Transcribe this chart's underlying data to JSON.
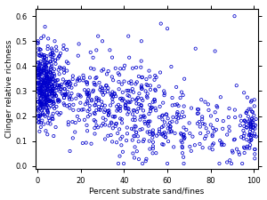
{
  "title": "",
  "xlabel": "Percent substrate sand/fines",
  "ylabel": "Clinger relative richness",
  "xlim": [
    -1,
    102
  ],
  "ylim": [
    -0.01,
    0.63
  ],
  "xticks": [
    0,
    20,
    40,
    60,
    80,
    100
  ],
  "yticks": [
    0.0,
    0.1,
    0.2,
    0.3,
    0.4,
    0.5,
    0.6
  ],
  "marker_color": "#0000CC",
  "background_color": "#ffffff",
  "seed": 42
}
